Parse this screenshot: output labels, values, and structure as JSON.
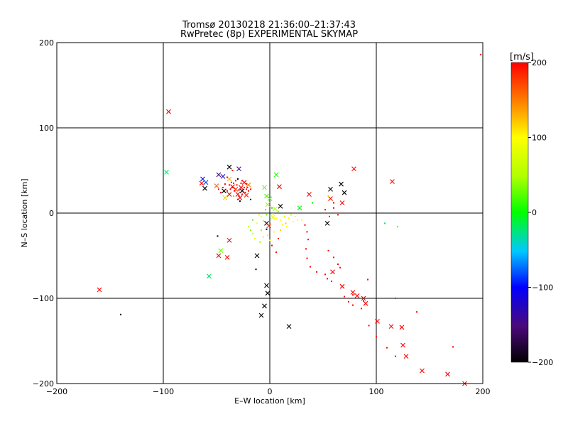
{
  "title_line1": "Tromsø 20130218 21:36:00–21:37:43",
  "title_line2": "RwPretec (8p) EXPERIMENTAL SKYMAP",
  "colors": {
    "axis": "#000000",
    "background": "#ffffff"
  },
  "chart_data": {
    "type": "scatter",
    "xlabel": "E–W location [km]",
    "ylabel": "N–S location [km]",
    "xlim": [
      -200,
      200
    ],
    "ylim": [
      -200,
      200
    ],
    "xticks": [
      -200,
      -100,
      0,
      100,
      200
    ],
    "yticks": [
      -200,
      -100,
      0,
      100,
      200
    ],
    "xtick_labels": [
      "−200",
      "−100",
      "0",
      "100",
      "200"
    ],
    "ytick_labels": [
      "−200",
      "−100",
      "0",
      "100",
      "200"
    ],
    "grid": true,
    "colorbar": {
      "label": "[m/s]",
      "range": [
        -200,
        200
      ],
      "ticks": [
        -200,
        -100,
        0,
        100,
        200
      ],
      "tick_labels": [
        "−200",
        "−100",
        "0",
        "100",
        "200"
      ]
    },
    "series": [
      {
        "name": "cross markers",
        "marker": "x",
        "points": [
          [
            -95,
            119,
            200
          ],
          [
            -97,
            48,
            -20
          ],
          [
            -63,
            40,
            -110
          ],
          [
            -60,
            36,
            -80
          ],
          [
            -64,
            35,
            200
          ],
          [
            -61,
            29,
            -200
          ],
          [
            -48,
            45,
            -150
          ],
          [
            -44,
            43,
            -120
          ],
          [
            -38,
            54,
            -200
          ],
          [
            -29,
            52,
            -150
          ],
          [
            -38,
            40,
            130
          ],
          [
            -50,
            32,
            160
          ],
          [
            -43,
            26,
            -200
          ],
          [
            -35,
            31,
            200
          ],
          [
            -30,
            22,
            200
          ],
          [
            -28,
            18,
            200
          ],
          [
            -26,
            26,
            -200
          ],
          [
            -22,
            21,
            180
          ],
          [
            -24,
            36,
            200
          ],
          [
            -20,
            33,
            150
          ],
          [
            -42,
            18,
            120
          ],
          [
            -38,
            22,
            200
          ],
          [
            -32,
            28,
            180
          ],
          [
            -27,
            30,
            200
          ],
          [
            6,
            45,
            10
          ],
          [
            -5,
            30,
            30
          ],
          [
            -3,
            20,
            20
          ],
          [
            0,
            17,
            20
          ],
          [
            -2,
            10,
            40
          ],
          [
            9,
            31,
            200
          ],
          [
            10,
            8,
            -200
          ],
          [
            5,
            5,
            60
          ],
          [
            3,
            -5,
            80
          ],
          [
            -3,
            -12,
            -200
          ],
          [
            -1,
            -15,
            180
          ],
          [
            -160,
            -90,
            200
          ],
          [
            -57,
            -74,
            -20
          ],
          [
            -46,
            -44,
            30
          ],
          [
            -48,
            -50,
            200
          ],
          [
            -40,
            -52,
            200
          ],
          [
            -38,
            -32,
            200
          ],
          [
            -12,
            -50,
            -200
          ],
          [
            -3,
            -85,
            -200
          ],
          [
            -2,
            -94,
            -200
          ],
          [
            -5,
            -109,
            -200
          ],
          [
            -8,
            -120,
            -200
          ],
          [
            18,
            -133,
            -200
          ],
          [
            28,
            6,
            0
          ],
          [
            57,
            28,
            -200
          ],
          [
            67,
            34,
            -200
          ],
          [
            70,
            24,
            -200
          ],
          [
            57,
            17,
            200
          ],
          [
            37,
            22,
            200
          ],
          [
            68,
            12,
            200
          ],
          [
            79,
            52,
            200
          ],
          [
            115,
            37,
            200
          ],
          [
            68,
            -86,
            200
          ],
          [
            59,
            -69,
            200
          ],
          [
            78,
            -93,
            200
          ],
          [
            82,
            -97,
            200
          ],
          [
            88,
            -100,
            200
          ],
          [
            90,
            -106,
            200
          ],
          [
            101,
            -127,
            200
          ],
          [
            114,
            -133,
            200
          ],
          [
            124,
            -134,
            200
          ],
          [
            125,
            -155,
            200
          ],
          [
            128,
            -168,
            200
          ],
          [
            143,
            -185,
            200
          ],
          [
            167,
            -189,
            200
          ],
          [
            183,
            -200,
            200
          ],
          [
            54,
            -12,
            -200
          ]
        ]
      },
      {
        "name": "dot markers",
        "marker": "dot",
        "points": [
          [
            -140,
            -119,
            -200
          ],
          [
            198,
            186,
            200
          ],
          [
            -49,
            -27,
            -200
          ],
          [
            -13,
            -66,
            -200
          ],
          [
            -8,
            -4,
            100
          ],
          [
            -3,
            -2,
            20
          ],
          [
            0,
            -3,
            0
          ],
          [
            3,
            -1,
            80
          ],
          [
            6,
            -6,
            100
          ],
          [
            -6,
            -9,
            60
          ],
          [
            10,
            -8,
            100
          ],
          [
            14,
            -4,
            80
          ],
          [
            18,
            -6,
            100
          ],
          [
            22,
            -10,
            100
          ],
          [
            26,
            -8,
            100
          ],
          [
            -12,
            -12,
            100
          ],
          [
            -16,
            -8,
            20
          ],
          [
            -8,
            -20,
            40
          ],
          [
            -2,
            -26,
            80
          ],
          [
            4,
            -22,
            100
          ],
          [
            8,
            -30,
            200
          ],
          [
            -9,
            -34,
            40
          ],
          [
            -16,
            -24,
            60
          ],
          [
            -18,
            -20,
            30
          ],
          [
            12,
            -14,
            100
          ],
          [
            16,
            -16,
            100
          ],
          [
            2,
            -38,
            200
          ],
          [
            6,
            -46,
            200
          ],
          [
            0,
            -32,
            100
          ],
          [
            -6,
            -28,
            80
          ],
          [
            20,
            -2,
            60
          ],
          [
            24,
            -4,
            100
          ],
          [
            -20,
            -16,
            60
          ],
          [
            -4,
            4,
            20
          ],
          [
            2,
            6,
            0
          ],
          [
            -10,
            -2,
            80
          ],
          [
            8,
            2,
            40
          ],
          [
            15,
            -12,
            120
          ],
          [
            -14,
            -30,
            80
          ],
          [
            10,
            -20,
            120
          ],
          [
            30,
            -8,
            100
          ],
          [
            33,
            -14,
            200
          ],
          [
            35,
            -22,
            200
          ],
          [
            36,
            -31,
            200
          ],
          [
            34,
            -42,
            200
          ],
          [
            35,
            -53,
            200
          ],
          [
            38,
            -63,
            200
          ],
          [
            44,
            -69,
            200
          ],
          [
            52,
            -72,
            200
          ],
          [
            54,
            -77,
            200
          ],
          [
            58,
            -80,
            200
          ],
          [
            55,
            -44,
            200
          ],
          [
            60,
            -52,
            200
          ],
          [
            64,
            -60,
            200
          ],
          [
            66,
            -64,
            200
          ],
          [
            70,
            -98,
            200
          ],
          [
            74,
            -104,
            200
          ],
          [
            78,
            -108,
            200
          ],
          [
            86,
            -112,
            200
          ],
          [
            93,
            -132,
            200
          ],
          [
            110,
            -158,
            200
          ],
          [
            100,
            -145,
            200
          ],
          [
            118,
            -168,
            200
          ],
          [
            138,
            -116,
            200
          ],
          [
            172,
            -157,
            200
          ],
          [
            88,
            -103,
            200
          ],
          [
            92,
            -78,
            200
          ],
          [
            118,
            -100,
            200
          ],
          [
            78,
            -96,
            200
          ],
          [
            108,
            -12,
            -20
          ],
          [
            120,
            -16,
            20
          ],
          [
            55,
            20,
            120
          ],
          [
            60,
            12,
            200
          ],
          [
            60,
            6,
            200
          ],
          [
            52,
            4,
            200
          ],
          [
            56,
            -4,
            200
          ],
          [
            64,
            -2,
            200
          ],
          [
            40,
            12,
            0
          ],
          [
            -3,
            -19,
            -200
          ],
          [
            -35,
            50,
            200
          ],
          [
            -40,
            42,
            200
          ],
          [
            -18,
            16,
            -200
          ],
          [
            -28,
            14,
            -200
          ],
          [
            -30,
            40,
            -200
          ],
          [
            -45,
            30,
            100
          ],
          [
            -36,
            24,
            50
          ],
          [
            -34,
            20,
            130
          ],
          [
            -30,
            16,
            200
          ],
          [
            -26,
            22,
            200
          ],
          [
            -24,
            30,
            200
          ],
          [
            -22,
            28,
            200
          ],
          [
            -40,
            26,
            200
          ],
          [
            -46,
            24,
            200
          ],
          [
            -38,
            33,
            200
          ],
          [
            -34,
            35,
            200
          ],
          [
            -31,
            33,
            200
          ],
          [
            -29,
            27,
            200
          ],
          [
            -27,
            35,
            200
          ],
          [
            -25,
            25,
            200
          ],
          [
            -23,
            24,
            200
          ],
          [
            -21,
            30,
            200
          ],
          [
            -37,
            28,
            200
          ],
          [
            -33,
            26,
            200
          ],
          [
            -35,
            30,
            200
          ],
          [
            -44,
            30,
            200
          ],
          [
            -42,
            34,
            200
          ],
          [
            -20,
            26,
            200
          ],
          [
            -18,
            28,
            200
          ],
          [
            -22,
            34,
            200
          ],
          [
            -32,
            38,
            200
          ],
          [
            -26,
            38,
            200
          ],
          [
            -36,
            36,
            200
          ],
          [
            -48,
            28,
            200
          ]
        ]
      }
    ]
  }
}
